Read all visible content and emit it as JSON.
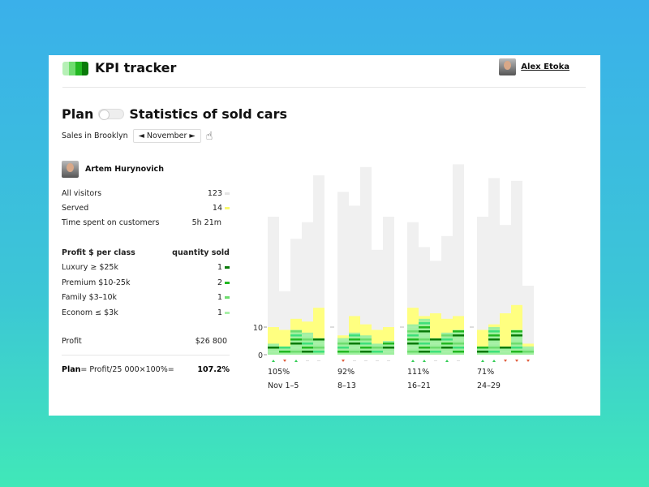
{
  "header": {
    "title": "KPI tracker",
    "user_name": "Alex Etoka",
    "logo_colors": [
      "#b6f0b6",
      "#6edc6e",
      "#22b822",
      "#0a7a0a"
    ]
  },
  "heading": {
    "plan_label": "Plan",
    "title": "Statistics of sold cars"
  },
  "filter": {
    "label": "Sales in Brooklyn",
    "month": "◄ November ►"
  },
  "person": {
    "name": "Artem Hurynovich"
  },
  "stats": [
    {
      "label": "All visitors",
      "value": "123",
      "color": "#e4e4e4"
    },
    {
      "label": "Served",
      "value": "14",
      "color": "#f8f870"
    },
    {
      "label": "Time spent on customers",
      "value": "5h 21m"
    }
  ],
  "classes": {
    "header_left": "Profit $ per class",
    "header_right": "quantity sold",
    "items": [
      {
        "label": "Luxury ≥ $25k",
        "value": "1",
        "color": "#0a7a0a"
      },
      {
        "label": "Premium $10-25k",
        "value": "2",
        "color": "#22b822"
      },
      {
        "label": "Family $3–10k",
        "value": "1",
        "color": "#6edc6e"
      },
      {
        "label": "Econom ≤ $3k",
        "value": "1",
        "color": "#a8f0a8"
      }
    ]
  },
  "profit": {
    "label": "Profit",
    "value": "$26 800"
  },
  "plan": {
    "bold": "Plan",
    "formula": "= Profit/25 000×100%=",
    "value": "107.2%"
  },
  "colors": {
    "visitors": "#f0f0f0",
    "served": "#ffff80",
    "up": "#33cc55",
    "down": "#e05a3a",
    "neutral": "#dddddd"
  },
  "chart_data": {
    "type": "bar",
    "ylim": [
      0,
      70
    ],
    "yticks": [
      "0",
      "10"
    ],
    "groups": [
      {
        "percent": "105%",
        "range": "Nov 1–5",
        "visitors": [
          50,
          23,
          42,
          48,
          65
        ],
        "served": [
          10,
          9,
          13,
          12,
          17
        ],
        "sold": [
          4,
          3,
          9,
          8,
          6
        ],
        "trend": [
          "up",
          "down",
          "up",
          "flat",
          "flat"
        ]
      },
      {
        "percent": "92%",
        "range": "8–13",
        "visitors": [
          59,
          54,
          68,
          38,
          50
        ],
        "served": [
          7,
          14,
          11,
          9,
          10
        ],
        "sold": [
          6,
          8,
          7,
          4,
          5
        ],
        "trend": [
          "down",
          "flat",
          "flat",
          "flat",
          "flat"
        ]
      },
      {
        "percent": "111%",
        "range": "16–21",
        "visitors": [
          48,
          39,
          34,
          43,
          69
        ],
        "served": [
          17,
          14,
          15,
          13,
          14
        ],
        "sold": [
          11,
          13,
          6,
          8,
          9
        ],
        "trend": [
          "up",
          "up",
          "flat",
          "up",
          "flat"
        ]
      },
      {
        "percent": "71%",
        "range": "24–29",
        "visitors": [
          50,
          64,
          47,
          63,
          25
        ],
        "served": [
          9,
          11,
          15,
          18,
          4
        ],
        "sold": [
          3,
          10,
          3,
          9,
          3
        ],
        "trend": [
          "up",
          "up",
          "down",
          "down",
          "down"
        ]
      }
    ]
  }
}
